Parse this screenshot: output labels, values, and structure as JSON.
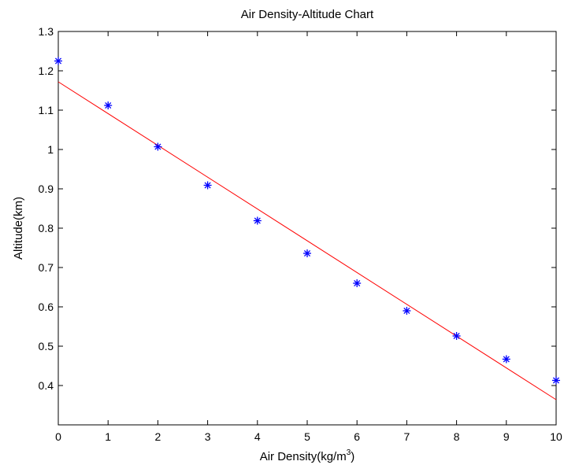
{
  "chart_data": {
    "type": "scatter",
    "title": "Air Density-Altitude Chart",
    "xlabel": "Air Density(kg/m",
    "xlabel_superscript": "3",
    "xlabel_suffix": ")",
    "ylabel": "Altitude(km)",
    "xlim": [
      0,
      10
    ],
    "ylim": [
      0.3,
      1.3
    ],
    "xticks": [
      0,
      1,
      2,
      3,
      4,
      5,
      6,
      7,
      8,
      9,
      10
    ],
    "xtick_labels": [
      "0",
      "1",
      "2",
      "3",
      "4",
      "5",
      "6",
      "7",
      "8",
      "9",
      "10"
    ],
    "yticks": [
      0.4,
      0.5,
      0.6,
      0.7,
      0.8,
      0.9,
      1.0,
      1.1,
      1.2,
      1.3
    ],
    "ytick_labels": [
      "0.4",
      "0.5",
      "0.6",
      "0.7",
      "0.8",
      "0.9",
      "1",
      "1.1",
      "1.2",
      "1.3"
    ],
    "grid": false,
    "series": [
      {
        "marker": "asterisk",
        "color": "#0000ff",
        "x": [
          0,
          1,
          2,
          3,
          4,
          5,
          6,
          7,
          8,
          9,
          10
        ],
        "y": [
          1.225,
          1.112,
          1.007,
          0.909,
          0.819,
          0.736,
          0.66,
          0.59,
          0.526,
          0.467,
          0.413
        ]
      },
      {
        "marker": "none",
        "line": "solid",
        "color": "#ff0000",
        "x": [
          0,
          10
        ],
        "y": [
          1.172,
          0.364
        ]
      }
    ]
  }
}
